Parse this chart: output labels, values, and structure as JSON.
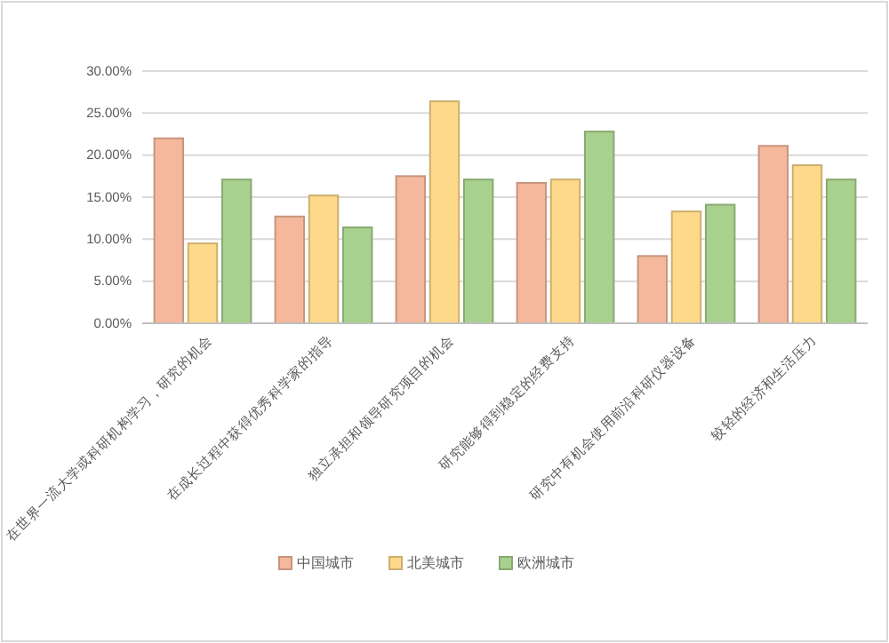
{
  "chart_data": {
    "type": "bar",
    "categories": [
      "在世界一流大学或科研机构学习，研究的机会",
      "在成长过程中获得优秀科学家的指导",
      "独立承担和领导研究项目的机会",
      "研究能够得到稳定的经费支持",
      "研究中有机会使用前沿科研仪器设备",
      "较轻的经济和生活压力"
    ],
    "series": [
      {
        "name": "中国城市",
        "color": "#f5b89c",
        "values": [
          22,
          12.7,
          17.5,
          16.7,
          8,
          21.1
        ]
      },
      {
        "name": "北美城市",
        "color": "#ffd98a",
        "values": [
          9.5,
          15.2,
          26.4,
          17.1,
          13.3,
          18.8
        ]
      },
      {
        "name": "欧洲城市",
        "color": "#a9d18e",
        "values": [
          17.1,
          11.4,
          17.1,
          22.8,
          14.1,
          17.1
        ]
      }
    ],
    "ylim": [
      0,
      30
    ],
    "yticks": [
      {
        "value": 0,
        "label": "0.00%"
      },
      {
        "value": 5,
        "label": "5.00%"
      },
      {
        "value": 10,
        "label": "10.00%"
      },
      {
        "value": 15,
        "label": "15.00%"
      },
      {
        "value": 20,
        "label": "20.00%"
      },
      {
        "value": 25,
        "label": "25.00%"
      },
      {
        "value": 30,
        "label": "30.00%"
      }
    ],
    "grid": "y",
    "legend": "bottom"
  }
}
